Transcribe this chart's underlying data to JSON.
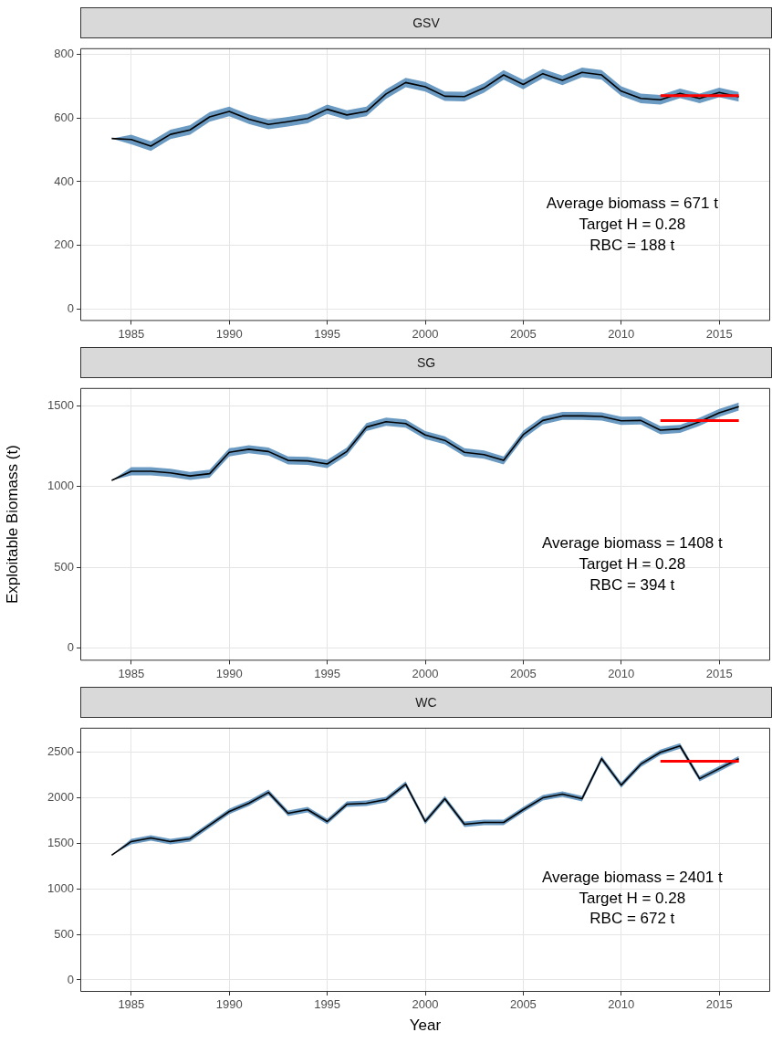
{
  "chart_data": [
    {
      "type": "line",
      "title": "GSV",
      "x": [
        1984,
        1985,
        1986,
        1987,
        1988,
        1989,
        1990,
        1991,
        1992,
        1993,
        1994,
        1995,
        1996,
        1997,
        1998,
        1999,
        2000,
        2001,
        2002,
        2003,
        2004,
        2005,
        2006,
        2007,
        2008,
        2009,
        2010,
        2011,
        2012,
        2013,
        2014,
        2015,
        2016
      ],
      "series": [
        {
          "color": "#000000",
          "values": [
            536,
            533,
            512,
            549,
            563,
            604,
            621,
            597,
            580,
            589,
            599,
            628,
            610,
            621,
            676,
            712,
            699,
            669,
            668,
            695,
            736,
            706,
            740,
            719,
            744,
            736,
            685,
            662,
            658,
            678,
            662,
            681,
            667
          ],
          "lower": [
            536,
            518,
            497,
            534,
            548,
            589,
            606,
            582,
            565,
            574,
            584,
            613,
            595,
            606,
            661,
            697,
            684,
            654,
            653,
            680,
            721,
            691,
            725,
            704,
            729,
            721,
            670,
            647,
            643,
            663,
            647,
            666,
            652
          ],
          "upper": [
            536,
            548,
            527,
            564,
            578,
            619,
            636,
            612,
            595,
            604,
            614,
            643,
            625,
            636,
            691,
            727,
            714,
            684,
            683,
            710,
            751,
            721,
            755,
            734,
            759,
            751,
            700,
            677,
            673,
            693,
            677,
            696,
            682
          ]
        },
        {
          "type": "line",
          "color": "#ff0000",
          "values": [
            null,
            null,
            null,
            null,
            null,
            null,
            null,
            null,
            null,
            null,
            null,
            null,
            null,
            null,
            null,
            null,
            null,
            null,
            null,
            null,
            null,
            null,
            null,
            null,
            null,
            null,
            null,
            null,
            671,
            671,
            671,
            671,
            671
          ]
        }
      ],
      "xlim": [
        1982.4,
        2017.6
      ],
      "xticks": [
        1985,
        1990,
        1995,
        2000,
        2005,
        2010,
        2015
      ],
      "ylim": [
        -38,
        820
      ],
      "yticks": [
        0,
        200,
        400,
        600,
        800
      ],
      "grid": true,
      "annotations": [
        "Average biomass = 671 t",
        "Target H = 0.28",
        "RBC = 188 t"
      ]
    },
    {
      "type": "line",
      "title": "SG",
      "ylabel": "Exploitable Biomass (t)",
      "x": [
        1984,
        1985,
        1986,
        1987,
        1988,
        1989,
        1990,
        1991,
        1992,
        1993,
        1994,
        1995,
        1996,
        1997,
        1998,
        1999,
        2000,
        2001,
        2002,
        2003,
        2004,
        2005,
        2006,
        2007,
        2008,
        2009,
        2010,
        2011,
        2012,
        2013,
        2014,
        2015,
        2016
      ],
      "series": [
        {
          "color": "#000000",
          "values": [
            1038,
            1095,
            1095,
            1085,
            1066,
            1080,
            1212,
            1231,
            1217,
            1162,
            1159,
            1140,
            1217,
            1368,
            1401,
            1390,
            1319,
            1286,
            1212,
            1198,
            1162,
            1321,
            1409,
            1437,
            1437,
            1434,
            1407,
            1409,
            1349,
            1357,
            1401,
            1456,
            1495
          ],
          "lower": [
            1038,
            1070,
            1070,
            1060,
            1041,
            1055,
            1187,
            1206,
            1192,
            1137,
            1134,
            1115,
            1192,
            1343,
            1376,
            1365,
            1294,
            1261,
            1187,
            1173,
            1137,
            1296,
            1384,
            1412,
            1412,
            1409,
            1382,
            1384,
            1324,
            1332,
            1376,
            1431,
            1470
          ],
          "upper": [
            1038,
            1120,
            1120,
            1110,
            1091,
            1105,
            1237,
            1256,
            1242,
            1187,
            1184,
            1165,
            1242,
            1393,
            1426,
            1415,
            1344,
            1311,
            1237,
            1223,
            1187,
            1346,
            1434,
            1462,
            1462,
            1459,
            1432,
            1434,
            1374,
            1382,
            1426,
            1481,
            1520
          ]
        },
        {
          "type": "line",
          "color": "#ff0000",
          "values": [
            null,
            null,
            null,
            null,
            null,
            null,
            null,
            null,
            null,
            null,
            null,
            null,
            null,
            null,
            null,
            null,
            null,
            null,
            null,
            null,
            null,
            null,
            null,
            null,
            null,
            null,
            null,
            null,
            1408,
            1408,
            1408,
            1408,
            1408
          ]
        }
      ],
      "xlim": [
        1982.4,
        2017.6
      ],
      "xticks": [
        1985,
        1990,
        1995,
        2000,
        2005,
        2010,
        2015
      ],
      "ylim": [
        -77,
        1610
      ],
      "yticks": [
        0,
        500,
        1000,
        1500
      ],
      "grid": true,
      "annotations": [
        "Average biomass = 1408 t",
        "Target H = 0.28",
        "RBC = 394 t"
      ]
    },
    {
      "type": "line",
      "title": "WC",
      "xlabel": "Year",
      "x": [
        1984,
        1985,
        1986,
        1987,
        1988,
        1989,
        1990,
        1991,
        1992,
        1993,
        1994,
        1995,
        1996,
        1997,
        1998,
        1999,
        2000,
        2001,
        2002,
        2003,
        2004,
        2005,
        2006,
        2007,
        2008,
        2009,
        2010,
        2011,
        2012,
        2013,
        2014,
        2015,
        2016
      ],
      "series": [
        {
          "color": "#000000",
          "values": [
            1370,
            1520,
            1560,
            1520,
            1550,
            1700,
            1850,
            1940,
            2060,
            1830,
            1870,
            1740,
            1930,
            1940,
            1980,
            2150,
            1740,
            1990,
            1710,
            1730,
            1730,
            1870,
            2000,
            2040,
            1990,
            2430,
            2140,
            2370,
            2500,
            2570,
            2210,
            2320,
            2430
          ],
          "lower": [
            1370,
            1490,
            1530,
            1490,
            1520,
            1670,
            1820,
            1910,
            2030,
            1800,
            1840,
            1710,
            1900,
            1910,
            1950,
            2120,
            1710,
            1960,
            1680,
            1700,
            1700,
            1840,
            1970,
            2010,
            1960,
            2400,
            2110,
            2340,
            2470,
            2540,
            2180,
            2290,
            2400
          ],
          "upper": [
            1370,
            1550,
            1590,
            1550,
            1580,
            1730,
            1880,
            1970,
            2090,
            1860,
            1900,
            1770,
            1960,
            1970,
            2010,
            2180,
            1770,
            2020,
            1740,
            1760,
            1760,
            1900,
            2030,
            2070,
            2020,
            2460,
            2170,
            2400,
            2530,
            2600,
            2240,
            2350,
            2460
          ]
        },
        {
          "type": "line",
          "color": "#ff0000",
          "values": [
            null,
            null,
            null,
            null,
            null,
            null,
            null,
            null,
            null,
            null,
            null,
            null,
            null,
            null,
            null,
            null,
            null,
            null,
            null,
            null,
            null,
            null,
            null,
            null,
            null,
            null,
            null,
            null,
            2401,
            2401,
            2401,
            2401,
            2401
          ]
        }
      ],
      "xlim": [
        1982.4,
        2017.6
      ],
      "xticks": [
        1985,
        1990,
        1995,
        2000,
        2005,
        2010,
        2015
      ],
      "ylim": [
        -131,
        2770
      ],
      "yticks": [
        0,
        500,
        1000,
        1500,
        2000,
        2500
      ],
      "grid": true,
      "annotations": [
        "Average biomass = 2401 t",
        "Target H = 0.28",
        "RBC = 672 t"
      ]
    }
  ]
}
